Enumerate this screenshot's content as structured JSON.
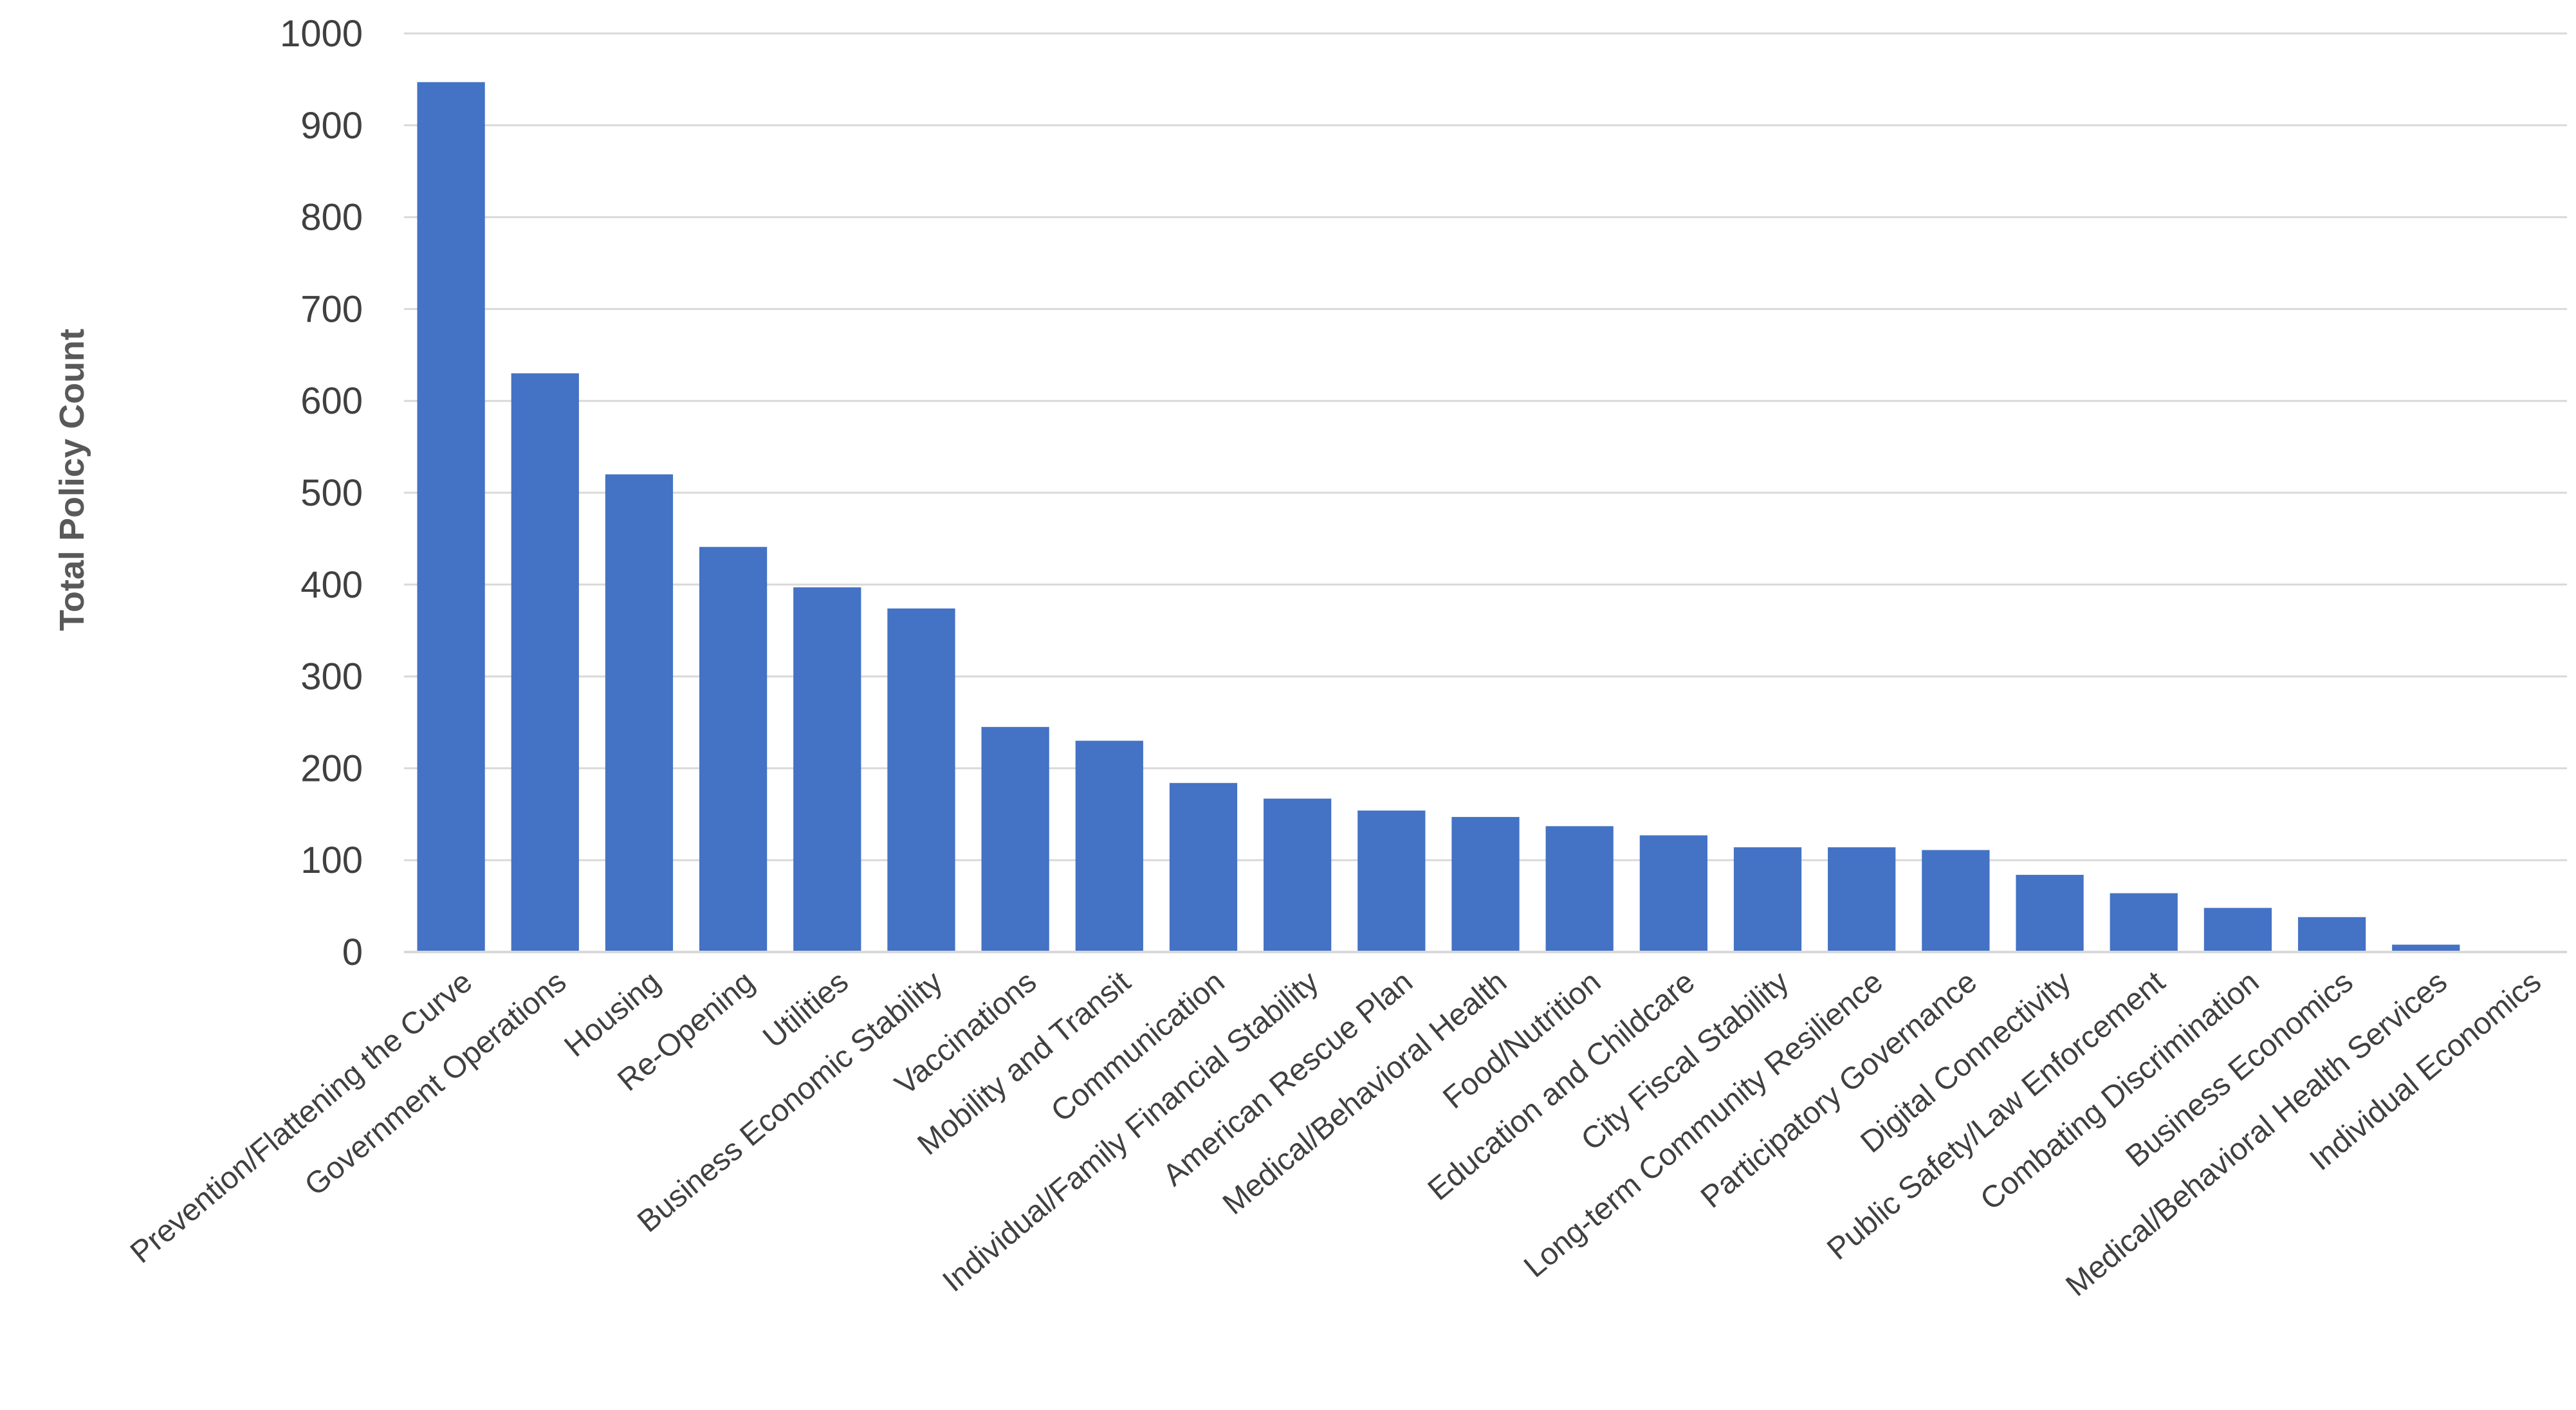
{
  "chart_data": {
    "type": "bar",
    "title": "",
    "xlabel": "",
    "ylabel": "Total Policy Count",
    "ylim": [
      0,
      1000
    ],
    "yticks": [
      0,
      100,
      200,
      300,
      400,
      500,
      600,
      700,
      800,
      900,
      1000
    ],
    "grid": true,
    "legend": "none",
    "bar_color": "#4472C4",
    "grid_color": "#D9D9D9",
    "categories": [
      "Prevention/Flattening the Curve",
      "Government Operations",
      "Housing",
      "Re-Opening",
      "Utilities",
      "Business Economic Stability",
      "Vaccinations",
      "Mobility and Transit",
      "Communication",
      "Individual/Family Financial Stability",
      "American Rescue Plan",
      "Medical/Behavioral Health",
      "Food/Nutrition",
      "Education and Childcare",
      "City Fiscal Stability",
      "Long-term Community Resilience",
      "Participatory Governance",
      "Digital Connectivity",
      "Public Safety/Law Enforcement",
      "Combating Discrimination",
      "Business Economics",
      "Medical/Behavioral Health Services",
      "Individual Economics"
    ],
    "values": [
      947,
      630,
      520,
      441,
      397,
      374,
      245,
      230,
      184,
      167,
      154,
      147,
      137,
      127,
      114,
      114,
      111,
      84,
      64,
      48,
      38,
      8,
      0
    ]
  }
}
